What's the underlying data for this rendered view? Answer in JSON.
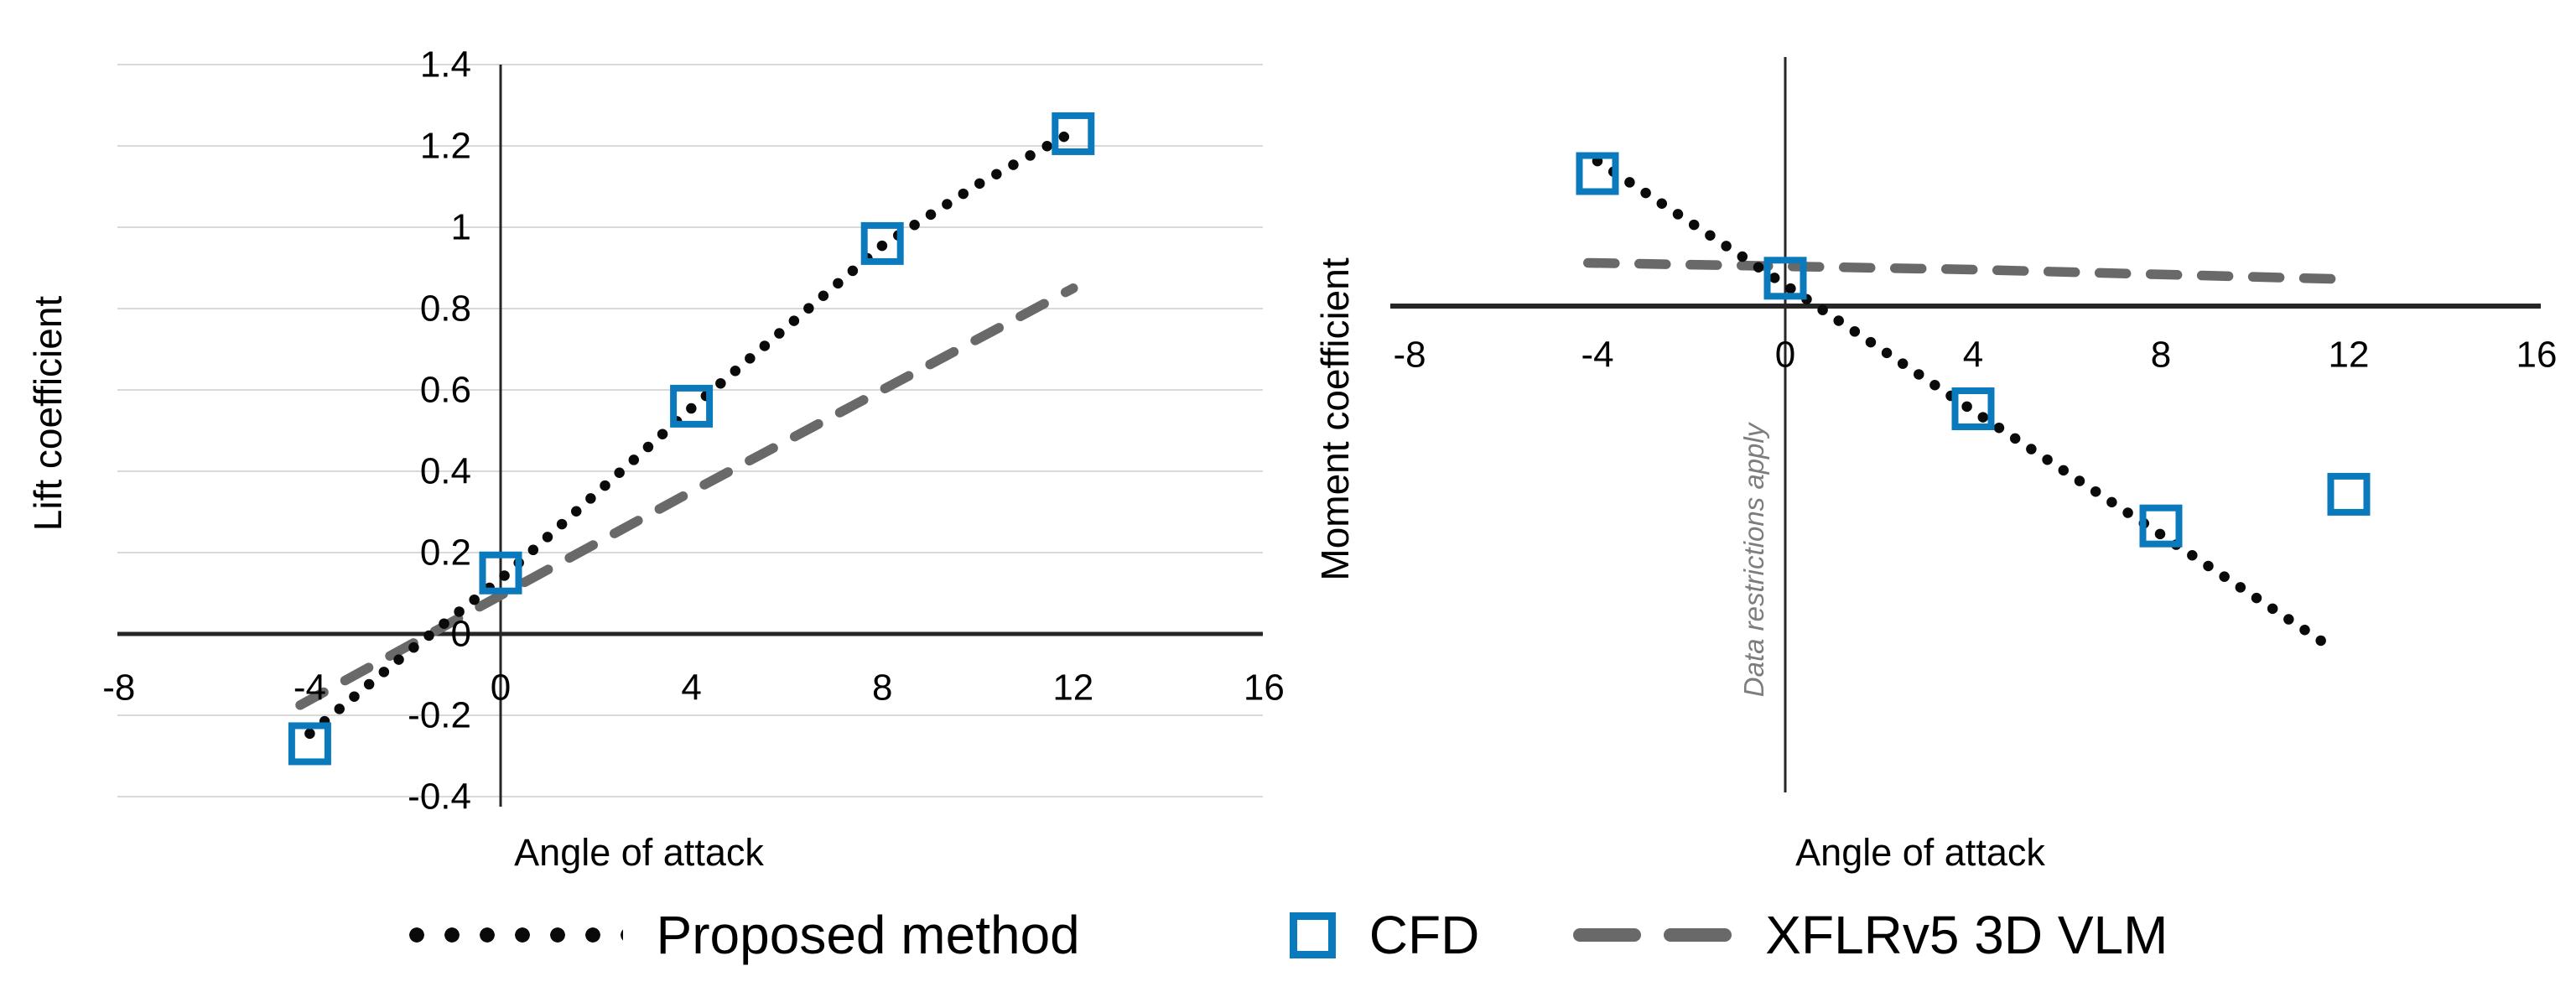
{
  "figure": {
    "background": "#ffffff",
    "description": "Two side-by-side scatter/line charts comparing lift and moment coefficient versus angle of attack"
  },
  "colors": {
    "cfd_blue": "#0b7abd",
    "xflr_gray": "#696969",
    "proposed_black": "#0a0a0a",
    "axis": "#262626",
    "gridline": "#d9d9d9",
    "annotation_gray": "#7d7d7d",
    "text": "#000000"
  },
  "legend": {
    "items": [
      {
        "label": "Proposed method",
        "swatch": "dotted-line"
      },
      {
        "label": "CFD",
        "swatch": "open-square"
      },
      {
        "label": "XFLRv5 3D VLM",
        "swatch": "dashed-line"
      }
    ]
  },
  "chart_data": [
    {
      "type": "line",
      "title": "",
      "xlabel": "Angle of attack",
      "ylabel": "Lift coefficient",
      "xlim": [
        -8,
        16
      ],
      "ylim": [
        -0.4,
        1.4
      ],
      "grid": true,
      "legend_position": "bottom-shared",
      "xticks": [
        {
          "v": -8,
          "label": "-8"
        },
        {
          "v": -4,
          "label": "-4"
        },
        {
          "v": 0,
          "label": "0"
        },
        {
          "v": 4,
          "label": "4"
        },
        {
          "v": 8,
          "label": "8"
        },
        {
          "v": 12,
          "label": "12"
        },
        {
          "v": 16,
          "label": "16"
        }
      ],
      "yticks": [
        {
          "v": 1.4,
          "label": "1.4"
        },
        {
          "v": 1.2,
          "label": "1.2"
        },
        {
          "v": 1,
          "label": "1"
        },
        {
          "v": 0.8,
          "label": "0.8"
        },
        {
          "v": 0.6,
          "label": "0.6"
        },
        {
          "v": 0.4,
          "label": "0.4"
        },
        {
          "v": 0.2,
          "label": "0.2"
        },
        {
          "v": 0,
          "label": "0"
        },
        {
          "v": -0.2,
          "label": "-0.2"
        },
        {
          "v": -0.4,
          "label": "-0.4"
        }
      ],
      "series": [
        {
          "name": "XFLRv5 3D VLM",
          "style": "dashed",
          "color": "#696969",
          "points": [
            [
              -4.2,
              -0.175
            ],
            [
              0,
              0.095
            ],
            [
              4,
              0.35
            ],
            [
              8,
              0.6
            ],
            [
              12,
              0.85
            ]
          ]
        },
        {
          "name": "Proposed method",
          "style": "dotted",
          "color": "#0a0a0a",
          "points": [
            [
              -4,
              -0.245
            ],
            [
              -2,
              -0.05
            ],
            [
              0,
              0.135
            ],
            [
              2,
              0.345
            ],
            [
              4,
              0.555
            ],
            [
              6,
              0.755
            ],
            [
              8,
              0.955
            ],
            [
              10,
              1.105
            ],
            [
              12,
              1.235
            ]
          ]
        },
        {
          "name": "CFD",
          "style": "squares",
          "color": "#0b7abd",
          "points": [
            [
              -4,
              -0.27
            ],
            [
              0,
              0.15
            ],
            [
              4,
              0.56
            ],
            [
              8,
              0.96
            ],
            [
              12,
              1.23
            ]
          ]
        }
      ]
    },
    {
      "type": "line",
      "title": "",
      "xlabel": "Angle of attack",
      "ylabel": "Moment coefficient",
      "annotation": "Data restrictions apply",
      "xlim": [
        -8.4,
        16.1
      ],
      "ylim": [
        -0.253,
        0.13
      ],
      "grid": false,
      "y_axis_tick_labels_visible": false,
      "note": "y-axis shows no numeric labels; series values are estimated relative units",
      "xticks": [
        {
          "v": -8,
          "label": "-8"
        },
        {
          "v": -4,
          "label": "-4"
        },
        {
          "v": 0,
          "label": "0"
        },
        {
          "v": 4,
          "label": "4"
        },
        {
          "v": 8,
          "label": "8"
        },
        {
          "v": 12,
          "label": "12"
        },
        {
          "v": 16,
          "label": "16"
        }
      ],
      "yticks": [],
      "series": [
        {
          "name": "XFLRv5 3D VLM",
          "style": "dashed",
          "color": "#696969",
          "points": [
            [
              -4.2,
              0.0225
            ],
            [
              4,
              0.019
            ],
            [
              11.9,
              0.014
            ]
          ]
        },
        {
          "name": "Proposed method",
          "style": "dotted",
          "color": "#0a0a0a",
          "points": [
            [
              -4,
              0.0755
            ],
            [
              0,
              0.011
            ],
            [
              4,
              -0.0545
            ],
            [
              8,
              -0.119
            ],
            [
              11.7,
              -0.179
            ]
          ]
        },
        {
          "name": "CFD",
          "style": "squares",
          "color": "#0b7abd",
          "points": [
            [
              -4,
              0.069
            ],
            [
              0,
              0.0145
            ],
            [
              4,
              -0.0535
            ],
            [
              8,
              -0.1145
            ],
            [
              12,
              -0.098
            ]
          ]
        }
      ]
    }
  ]
}
